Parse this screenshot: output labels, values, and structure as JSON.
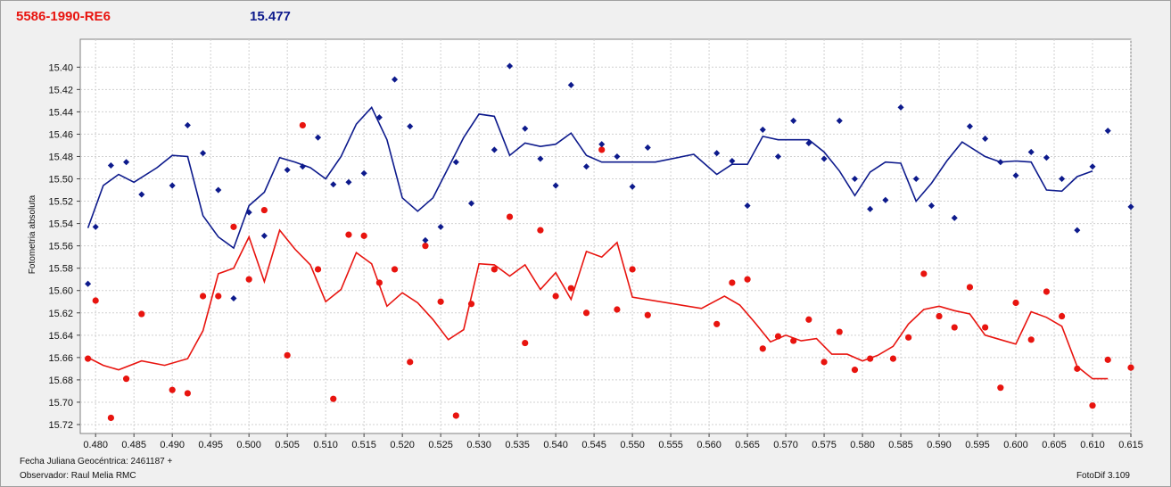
{
  "header": {
    "star_label": "5586-1990-RE6",
    "comparison_value": "15.477"
  },
  "footer": {
    "julian_date": "Fecha Juliana Geocéntrica: 2461187 +",
    "observer": "Observador: Raul Melia RMC",
    "version": "FotoDif 3.109"
  },
  "chart_data": {
    "type": "scatter",
    "ylabel": "Fotometria absoluta",
    "xlim": [
      0.478,
      0.615
    ],
    "ylim": [
      15.375,
      15.728
    ],
    "y_reversed": true,
    "xticks": [
      "0.480",
      "0.485",
      "0.490",
      "0.495",
      "0.500",
      "0.505",
      "0.510",
      "0.515",
      "0.520",
      "0.525",
      "0.530",
      "0.535",
      "0.540",
      "0.545",
      "0.550",
      "0.555",
      "0.560",
      "0.565",
      "0.570",
      "0.575",
      "0.580",
      "0.585",
      "0.590",
      "0.595",
      "0.600",
      "0.605",
      "0.610",
      "0.615"
    ],
    "yticks": [
      "15.40",
      "15.42",
      "15.44",
      "15.46",
      "15.48",
      "15.50",
      "15.52",
      "15.54",
      "15.56",
      "15.58",
      "15.60",
      "15.62",
      "15.64",
      "15.66",
      "15.68",
      "15.70",
      "15.72"
    ],
    "grid": true,
    "colors": {
      "red": "#e8140f",
      "blue": "#0d1a8c"
    },
    "series": [
      {
        "color": "red",
        "points": [
          [
            0.479,
            15.661
          ],
          [
            0.48,
            15.609
          ],
          [
            0.482,
            15.714
          ],
          [
            0.484,
            15.679
          ],
          [
            0.486,
            15.621
          ],
          [
            0.49,
            15.689
          ],
          [
            0.492,
            15.692
          ],
          [
            0.494,
            15.605
          ],
          [
            0.496,
            15.605
          ],
          [
            0.498,
            15.543
          ],
          [
            0.5,
            15.59
          ],
          [
            0.502,
            15.528
          ],
          [
            0.505,
            15.658
          ],
          [
            0.507,
            15.452
          ],
          [
            0.509,
            15.581
          ],
          [
            0.511,
            15.697
          ],
          [
            0.513,
            15.55
          ],
          [
            0.515,
            15.551
          ],
          [
            0.517,
            15.593
          ],
          [
            0.519,
            15.581
          ],
          [
            0.521,
            15.664
          ],
          [
            0.523,
            15.56
          ],
          [
            0.525,
            15.61
          ],
          [
            0.527,
            15.712
          ],
          [
            0.529,
            15.612
          ],
          [
            0.532,
            15.581
          ],
          [
            0.534,
            15.534
          ],
          [
            0.536,
            15.647
          ],
          [
            0.538,
            15.546
          ],
          [
            0.54,
            15.605
          ],
          [
            0.542,
            15.598
          ],
          [
            0.544,
            15.62
          ],
          [
            0.546,
            15.474
          ],
          [
            0.548,
            15.617
          ],
          [
            0.55,
            15.581
          ],
          [
            0.552,
            15.622
          ],
          [
            0.561,
            15.63
          ],
          [
            0.563,
            15.593
          ],
          [
            0.565,
            15.59
          ],
          [
            0.567,
            15.652
          ],
          [
            0.569,
            15.641
          ],
          [
            0.571,
            15.645
          ],
          [
            0.573,
            15.626
          ],
          [
            0.575,
            15.664
          ],
          [
            0.577,
            15.637
          ],
          [
            0.579,
            15.671
          ],
          [
            0.581,
            15.661
          ],
          [
            0.584,
            15.661
          ],
          [
            0.586,
            15.642
          ],
          [
            0.588,
            15.585
          ],
          [
            0.59,
            15.623
          ],
          [
            0.592,
            15.633
          ],
          [
            0.594,
            15.597
          ],
          [
            0.596,
            15.633
          ],
          [
            0.598,
            15.687
          ],
          [
            0.6,
            15.611
          ],
          [
            0.602,
            15.644
          ],
          [
            0.604,
            15.601
          ],
          [
            0.606,
            15.623
          ],
          [
            0.608,
            15.67
          ],
          [
            0.61,
            15.703
          ],
          [
            0.612,
            15.662
          ],
          [
            0.615,
            15.669
          ]
        ],
        "trend": [
          [
            0.479,
            15.66
          ],
          [
            0.481,
            15.667
          ],
          [
            0.483,
            15.671
          ],
          [
            0.486,
            15.663
          ],
          [
            0.489,
            15.667
          ],
          [
            0.492,
            15.661
          ],
          [
            0.494,
            15.636
          ],
          [
            0.496,
            15.585
          ],
          [
            0.498,
            15.58
          ],
          [
            0.5,
            15.552
          ],
          [
            0.502,
            15.592
          ],
          [
            0.504,
            15.546
          ],
          [
            0.506,
            15.563
          ],
          [
            0.508,
            15.577
          ],
          [
            0.51,
            15.61
          ],
          [
            0.512,
            15.599
          ],
          [
            0.514,
            15.566
          ],
          [
            0.516,
            15.576
          ],
          [
            0.518,
            15.614
          ],
          [
            0.52,
            15.602
          ],
          [
            0.522,
            15.611
          ],
          [
            0.524,
            15.626
          ],
          [
            0.526,
            15.644
          ],
          [
            0.528,
            15.635
          ],
          [
            0.53,
            15.576
          ],
          [
            0.532,
            15.577
          ],
          [
            0.534,
            15.587
          ],
          [
            0.536,
            15.577
          ],
          [
            0.538,
            15.599
          ],
          [
            0.54,
            15.584
          ],
          [
            0.542,
            15.608
          ],
          [
            0.544,
            15.565
          ],
          [
            0.546,
            15.57
          ],
          [
            0.548,
            15.557
          ],
          [
            0.55,
            15.606
          ],
          [
            0.559,
            15.616
          ],
          [
            0.562,
            15.605
          ],
          [
            0.564,
            15.613
          ],
          [
            0.566,
            15.629
          ],
          [
            0.568,
            15.646
          ],
          [
            0.57,
            15.64
          ],
          [
            0.572,
            15.645
          ],
          [
            0.574,
            15.643
          ],
          [
            0.576,
            15.657
          ],
          [
            0.578,
            15.657
          ],
          [
            0.58,
            15.663
          ],
          [
            0.582,
            15.658
          ],
          [
            0.584,
            15.65
          ],
          [
            0.586,
            15.63
          ],
          [
            0.588,
            15.617
          ],
          [
            0.59,
            15.614
          ],
          [
            0.592,
            15.618
          ],
          [
            0.594,
            15.621
          ],
          [
            0.596,
            15.64
          ],
          [
            0.598,
            15.644
          ],
          [
            0.6,
            15.648
          ],
          [
            0.602,
            15.619
          ],
          [
            0.604,
            15.624
          ],
          [
            0.606,
            15.632
          ],
          [
            0.608,
            15.668
          ],
          [
            0.61,
            15.679
          ],
          [
            0.612,
            15.679
          ]
        ]
      },
      {
        "color": "blue",
        "points": [
          [
            0.479,
            15.594
          ],
          [
            0.48,
            15.543
          ],
          [
            0.482,
            15.488
          ],
          [
            0.484,
            15.485
          ],
          [
            0.486,
            15.514
          ],
          [
            0.49,
            15.506
          ],
          [
            0.492,
            15.452
          ],
          [
            0.494,
            15.477
          ],
          [
            0.496,
            15.51
          ],
          [
            0.498,
            15.607
          ],
          [
            0.5,
            15.53
          ],
          [
            0.502,
            15.551
          ],
          [
            0.505,
            15.492
          ],
          [
            0.507,
            15.489
          ],
          [
            0.509,
            15.463
          ],
          [
            0.511,
            15.505
          ],
          [
            0.513,
            15.503
          ],
          [
            0.515,
            15.495
          ],
          [
            0.517,
            15.445
          ],
          [
            0.519,
            15.411
          ],
          [
            0.521,
            15.453
          ],
          [
            0.523,
            15.555
          ],
          [
            0.525,
            15.543
          ],
          [
            0.527,
            15.485
          ],
          [
            0.529,
            15.522
          ],
          [
            0.532,
            15.474
          ],
          [
            0.534,
            15.399
          ],
          [
            0.536,
            15.455
          ],
          [
            0.538,
            15.482
          ],
          [
            0.54,
            15.506
          ],
          [
            0.542,
            15.416
          ],
          [
            0.544,
            15.489
          ],
          [
            0.546,
            15.469
          ],
          [
            0.548,
            15.48
          ],
          [
            0.55,
            15.507
          ],
          [
            0.552,
            15.472
          ],
          [
            0.561,
            15.477
          ],
          [
            0.563,
            15.484
          ],
          [
            0.565,
            15.524
          ],
          [
            0.567,
            15.456
          ],
          [
            0.569,
            15.48
          ],
          [
            0.571,
            15.448
          ],
          [
            0.573,
            15.468
          ],
          [
            0.575,
            15.482
          ],
          [
            0.577,
            15.448
          ],
          [
            0.579,
            15.5
          ],
          [
            0.581,
            15.527
          ],
          [
            0.583,
            15.519
          ],
          [
            0.585,
            15.436
          ],
          [
            0.587,
            15.5
          ],
          [
            0.589,
            15.524
          ],
          [
            0.592,
            15.535
          ],
          [
            0.594,
            15.453
          ],
          [
            0.596,
            15.464
          ],
          [
            0.598,
            15.485
          ],
          [
            0.6,
            15.497
          ],
          [
            0.602,
            15.476
          ],
          [
            0.604,
            15.481
          ],
          [
            0.606,
            15.5
          ],
          [
            0.608,
            15.546
          ],
          [
            0.61,
            15.489
          ],
          [
            0.612,
            15.457
          ],
          [
            0.615,
            15.525
          ]
        ],
        "trend": [
          [
            0.479,
            15.544
          ],
          [
            0.481,
            15.506
          ],
          [
            0.483,
            15.496
          ],
          [
            0.485,
            15.503
          ],
          [
            0.488,
            15.49
          ],
          [
            0.49,
            15.479
          ],
          [
            0.492,
            15.48
          ],
          [
            0.494,
            15.533
          ],
          [
            0.496,
            15.552
          ],
          [
            0.498,
            15.562
          ],
          [
            0.5,
            15.524
          ],
          [
            0.502,
            15.512
          ],
          [
            0.504,
            15.481
          ],
          [
            0.506,
            15.485
          ],
          [
            0.508,
            15.49
          ],
          [
            0.51,
            15.5
          ],
          [
            0.512,
            15.48
          ],
          [
            0.514,
            15.451
          ],
          [
            0.516,
            15.436
          ],
          [
            0.518,
            15.465
          ],
          [
            0.52,
            15.517
          ],
          [
            0.522,
            15.529
          ],
          [
            0.524,
            15.517
          ],
          [
            0.526,
            15.49
          ],
          [
            0.528,
            15.463
          ],
          [
            0.53,
            15.442
          ],
          [
            0.532,
            15.444
          ],
          [
            0.534,
            15.479
          ],
          [
            0.536,
            15.468
          ],
          [
            0.538,
            15.471
          ],
          [
            0.54,
            15.469
          ],
          [
            0.542,
            15.459
          ],
          [
            0.544,
            15.479
          ],
          [
            0.546,
            15.485
          ],
          [
            0.548,
            15.485
          ],
          [
            0.553,
            15.485
          ],
          [
            0.558,
            15.478
          ],
          [
            0.561,
            15.496
          ],
          [
            0.563,
            15.487
          ],
          [
            0.565,
            15.487
          ],
          [
            0.567,
            15.462
          ],
          [
            0.569,
            15.465
          ],
          [
            0.571,
            15.465
          ],
          [
            0.573,
            15.465
          ],
          [
            0.575,
            15.476
          ],
          [
            0.577,
            15.493
          ],
          [
            0.579,
            15.515
          ],
          [
            0.581,
            15.494
          ],
          [
            0.583,
            15.485
          ],
          [
            0.585,
            15.486
          ],
          [
            0.587,
            15.52
          ],
          [
            0.589,
            15.504
          ],
          [
            0.591,
            15.484
          ],
          [
            0.593,
            15.467
          ],
          [
            0.596,
            15.48
          ],
          [
            0.598,
            15.485
          ],
          [
            0.6,
            15.484
          ],
          [
            0.602,
            15.485
          ],
          [
            0.604,
            15.51
          ],
          [
            0.606,
            15.511
          ],
          [
            0.608,
            15.498
          ],
          [
            0.61,
            15.493
          ]
        ]
      }
    ]
  }
}
